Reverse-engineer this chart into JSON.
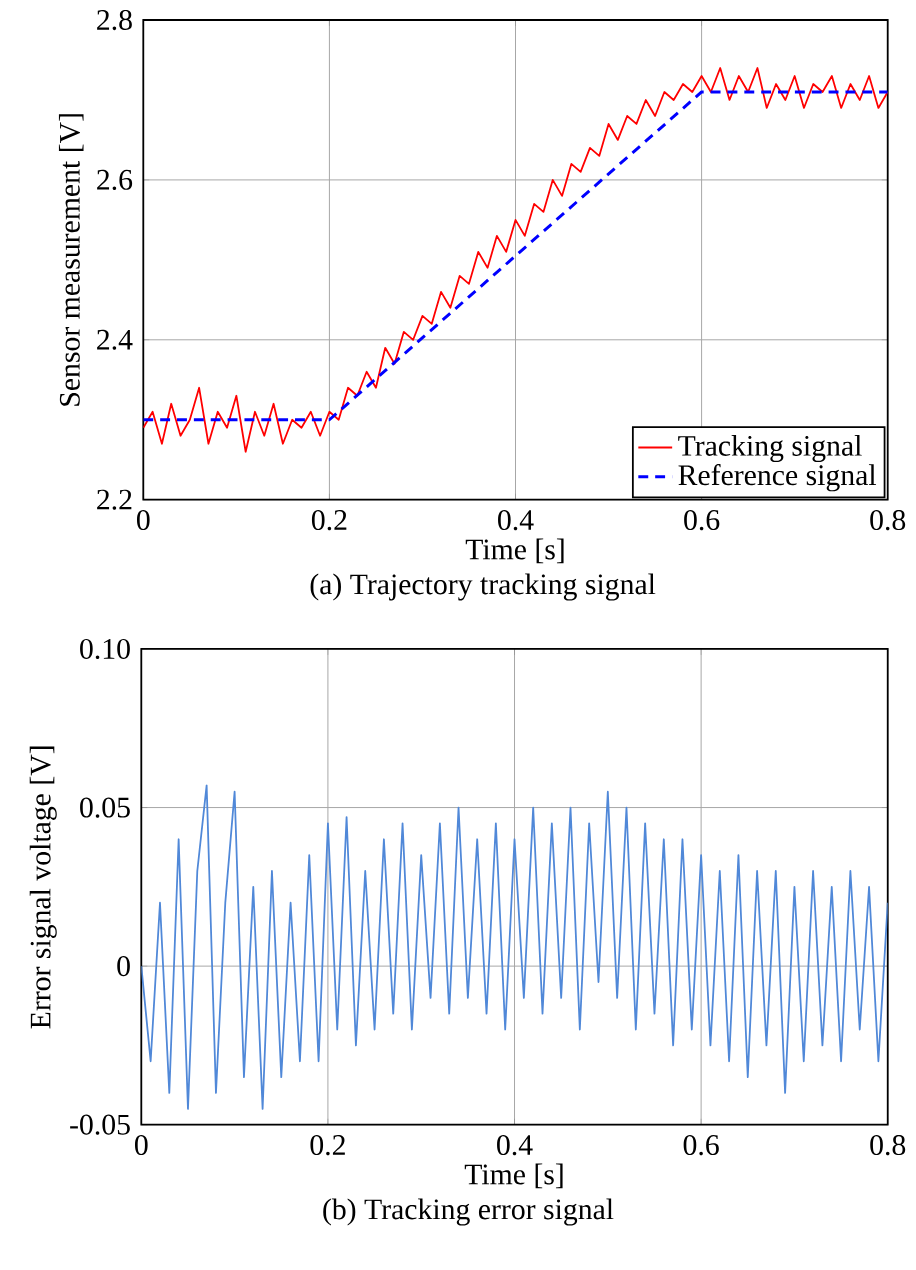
{
  "chart_data": [
    {
      "type": "line",
      "xlabel": "Time [s]",
      "ylabel": "Sensor measurement [V]",
      "annotations": [
        "(a) Trajectory tracking signal"
      ],
      "xlim": [
        0,
        0.8
      ],
      "ylim": [
        2.2,
        2.8
      ],
      "xticks": [
        0,
        0.2,
        0.4,
        0.6,
        0.8
      ],
      "yticks": [
        2.2,
        2.4,
        2.6,
        2.8
      ],
      "grid": true,
      "legend": "bottom right",
      "series": [
        {
          "name": "Tracking signal",
          "color": "#ff0000",
          "line_style": "solid",
          "x": [
            0,
            0.01,
            0.02,
            0.03,
            0.04,
            0.05,
            0.06,
            0.07,
            0.08,
            0.09,
            0.1,
            0.11,
            0.12,
            0.13,
            0.14,
            0.15,
            0.16,
            0.17,
            0.18,
            0.19,
            0.2,
            0.21,
            0.22,
            0.23,
            0.24,
            0.25,
            0.26,
            0.27,
            0.28,
            0.29,
            0.3,
            0.31,
            0.32,
            0.33,
            0.34,
            0.35,
            0.36,
            0.37,
            0.38,
            0.39,
            0.4,
            0.41,
            0.42,
            0.43,
            0.44,
            0.45,
            0.46,
            0.47,
            0.48,
            0.49,
            0.5,
            0.51,
            0.52,
            0.53,
            0.54,
            0.55,
            0.56,
            0.57,
            0.58,
            0.59,
            0.6,
            0.61,
            0.62,
            0.63,
            0.64,
            0.65,
            0.66,
            0.67,
            0.68,
            0.69,
            0.7,
            0.71,
            0.72,
            0.73,
            0.74,
            0.75,
            0.76,
            0.77,
            0.78,
            0.79,
            0.8
          ],
          "values": [
            2.29,
            2.31,
            2.27,
            2.32,
            2.28,
            2.3,
            2.34,
            2.27,
            2.31,
            2.29,
            2.33,
            2.26,
            2.31,
            2.28,
            2.32,
            2.27,
            2.3,
            2.29,
            2.31,
            2.28,
            2.31,
            2.3,
            2.34,
            2.33,
            2.36,
            2.34,
            2.39,
            2.37,
            2.41,
            2.4,
            2.43,
            2.42,
            2.46,
            2.44,
            2.48,
            2.47,
            2.51,
            2.49,
            2.53,
            2.51,
            2.55,
            2.53,
            2.57,
            2.56,
            2.6,
            2.58,
            2.62,
            2.61,
            2.64,
            2.63,
            2.67,
            2.65,
            2.68,
            2.67,
            2.7,
            2.68,
            2.71,
            2.7,
            2.72,
            2.71,
            2.73,
            2.71,
            2.74,
            2.7,
            2.73,
            2.71,
            2.74,
            2.69,
            2.72,
            2.7,
            2.73,
            2.69,
            2.72,
            2.71,
            2.73,
            2.69,
            2.72,
            2.7,
            2.73,
            2.69,
            2.71
          ]
        },
        {
          "name": "Reference signal",
          "color": "#0000ff",
          "line_style": "dashed",
          "x": [
            0,
            0.2,
            0.6,
            0.8
          ],
          "values": [
            2.3,
            2.3,
            2.71,
            2.71
          ]
        }
      ]
    },
    {
      "type": "line",
      "xlabel": "Time [s]",
      "ylabel": "Error signal voltage [V]",
      "annotations": [
        "(b) Tracking error signal"
      ],
      "xlim": [
        0,
        0.8
      ],
      "ylim": [
        -0.05,
        0.1
      ],
      "xticks": [
        0,
        0.2,
        0.4,
        0.6,
        0.8
      ],
      "yticks": [
        -0.05,
        0,
        0.05,
        {
          "value": 0.1,
          "label": "0.10"
        }
      ],
      "grid": true,
      "series": [
        {
          "color": "#5088d8",
          "line_style": "solid",
          "x": [
            0,
            0.01,
            0.02,
            0.03,
            0.04,
            0.05,
            0.06,
            0.07,
            0.08,
            0.09,
            0.1,
            0.11,
            0.12,
            0.13,
            0.14,
            0.15,
            0.16,
            0.17,
            0.18,
            0.19,
            0.2,
            0.21,
            0.22,
            0.23,
            0.24,
            0.25,
            0.26,
            0.27,
            0.28,
            0.29,
            0.3,
            0.31,
            0.32,
            0.33,
            0.34,
            0.35,
            0.36,
            0.37,
            0.38,
            0.39,
            0.4,
            0.41,
            0.42,
            0.43,
            0.44,
            0.45,
            0.46,
            0.47,
            0.48,
            0.49,
            0.5,
            0.51,
            0.52,
            0.53,
            0.54,
            0.55,
            0.56,
            0.57,
            0.58,
            0.59,
            0.6,
            0.61,
            0.62,
            0.63,
            0.64,
            0.65,
            0.66,
            0.67,
            0.68,
            0.69,
            0.7,
            0.71,
            0.72,
            0.73,
            0.74,
            0.75,
            0.76,
            0.77,
            0.78,
            0.79,
            0.8
          ],
          "values": [
            0,
            -0.03,
            0.02,
            -0.04,
            0.04,
            -0.045,
            0.03,
            0.057,
            -0.04,
            0.02,
            0.055,
            -0.035,
            0.025,
            -0.045,
            0.03,
            -0.035,
            0.02,
            -0.03,
            0.035,
            -0.03,
            0.045,
            -0.02,
            0.047,
            -0.025,
            0.03,
            -0.02,
            0.04,
            -0.015,
            0.045,
            -0.02,
            0.035,
            -0.01,
            0.045,
            -0.015,
            0.05,
            -0.01,
            0.04,
            -0.015,
            0.045,
            -0.02,
            0.04,
            -0.01,
            0.05,
            -0.015,
            0.045,
            -0.01,
            0.05,
            -0.02,
            0.045,
            -0.005,
            0.055,
            -0.01,
            0.05,
            -0.02,
            0.045,
            -0.015,
            0.04,
            -0.025,
            0.04,
            -0.02,
            0.035,
            -0.025,
            0.03,
            -0.03,
            0.035,
            -0.035,
            0.03,
            -0.025,
            0.03,
            -0.04,
            0.025,
            -0.03,
            0.03,
            -0.025,
            0.025,
            -0.03,
            0.03,
            -0.02,
            0.025,
            -0.03,
            0.02
          ]
        }
      ]
    }
  ]
}
